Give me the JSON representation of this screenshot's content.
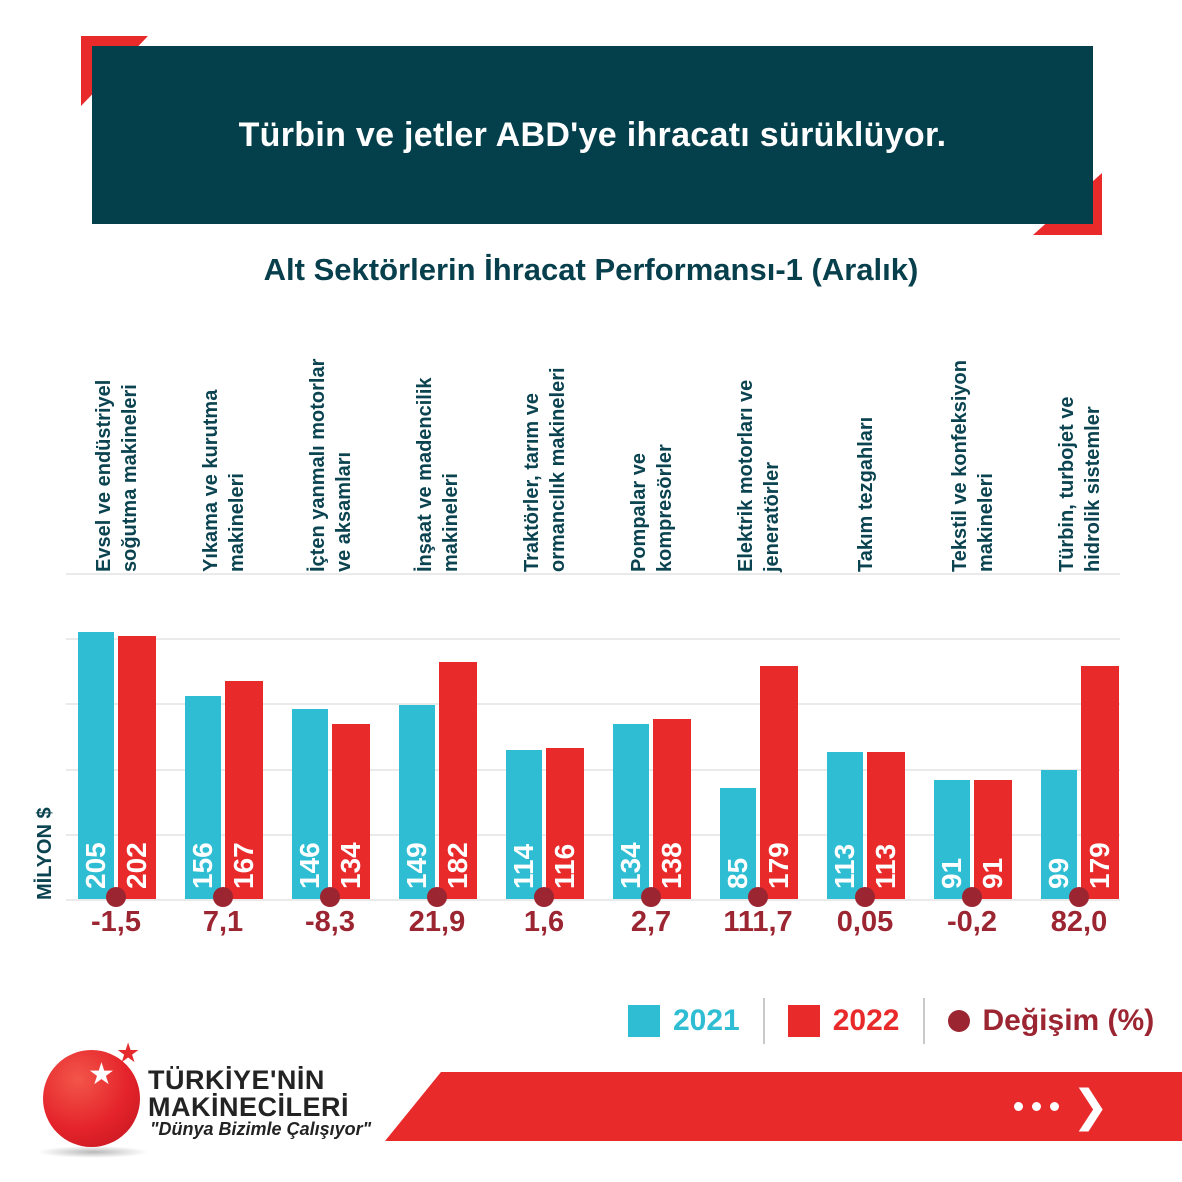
{
  "header": {
    "title": "Türbin ve jetler ABD'ye ihracatı sürüklüyor."
  },
  "chart_data": {
    "type": "bar",
    "title": "Alt Sektörlerin İhracat Performansı-1 (Aralık)",
    "ylabel": "MİLYON $",
    "ylim": [
      0,
      250
    ],
    "grid_step": 50,
    "grid": true,
    "legend_position": "bottom",
    "categories": [
      [
        "Evsel ve endüstriyel",
        "soğutma makineleri"
      ],
      [
        "Yıkama ve kurutma",
        "makineleri"
      ],
      [
        "İçten yanmalı motorlar",
        "ve aksamları"
      ],
      [
        "İnşaat ve madencilik",
        "makineleri"
      ],
      [
        "Traktörler, tarım ve",
        "ormancılık makineleri"
      ],
      [
        "Pompalar ve",
        "kompresörler"
      ],
      [
        "Elektrik motorları ve",
        "jeneratörler"
      ],
      [
        "Takım tezgahları"
      ],
      [
        "Tekstil ve konfeksiyon",
        "makineleri"
      ],
      [
        "Türbin, turbojet ve",
        "hidrolik sistemler"
      ]
    ],
    "series": [
      {
        "name": "2021",
        "color": "#2EBDD3",
        "values": [
          205,
          156,
          146,
          149,
          114,
          134,
          85,
          113,
          91,
          99
        ]
      },
      {
        "name": "2022",
        "color": "#E92A2B",
        "values": [
          202,
          167,
          134,
          182,
          116,
          138,
          179,
          113,
          91,
          179
        ]
      }
    ],
    "change_pct_labels": [
      "-1,5",
      "7,1",
      "-8,3",
      "21,9",
      "1,6",
      "2,7",
      "111,7",
      "0,05",
      "-0,2",
      "82,0"
    ],
    "change_marker_color": "#9C2532",
    "legend_items": [
      {
        "label": "2021",
        "color": "#2EBDD3"
      },
      {
        "label": "2022",
        "color": "#E92A2B"
      },
      {
        "label": "Değişim (%)",
        "color": "#9C2532"
      }
    ]
  },
  "footer": {
    "brand_line1": "TÜRKİYE'NİN",
    "brand_line2": "MAKİNECİLERİ",
    "tagline": "\"Dünya Bizimle Çalışıyor\"",
    "star_glyph": "★",
    "chevron_glyph": "❯"
  },
  "colors": {
    "banner_bg": "#043F4C",
    "accent_red": "#E92A2B",
    "text_teal": "#0B4450",
    "burgundy": "#9C2532",
    "gridline": "#EAEAEA"
  }
}
